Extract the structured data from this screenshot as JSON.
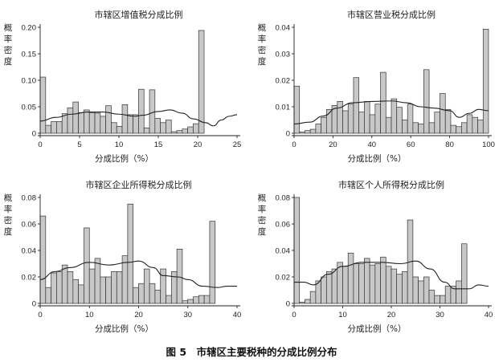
{
  "caption": "图 5　市辖区主要税种的分成比例分布",
  "chart_data": [
    {
      "type": "bar",
      "title": "市辖区增值税分成比例",
      "xlabel": "分成比例（%）",
      "ylabel": "概率密度",
      "xlim": [
        0,
        25
      ],
      "ylim": [
        0,
        0.2
      ],
      "xticks": [
        0,
        5,
        10,
        15,
        20,
        25
      ],
      "yticks": [
        0,
        0.05,
        0.1,
        0.15,
        0.2
      ],
      "ytick_labels": [
        "0",
        "0.05",
        "0.10",
        "0.15",
        "0.20"
      ],
      "bin_width": 0.694,
      "values": [
        0.106,
        0.015,
        0.022,
        0.022,
        0.037,
        0.048,
        0.059,
        0.039,
        0.044,
        0.039,
        0.038,
        0.032,
        0.052,
        0.02,
        0.013,
        0.054,
        0.035,
        0.035,
        0.083,
        0.01,
        0.082,
        0.028,
        0.02,
        0.025,
        0.003,
        0.005,
        0.008,
        0.012,
        0.018,
        0.194
      ],
      "density_curve": [
        [
          0,
          0.023
        ],
        [
          2,
          0.03
        ],
        [
          4,
          0.036
        ],
        [
          6,
          0.04
        ],
        [
          8,
          0.04
        ],
        [
          10,
          0.036
        ],
        [
          12,
          0.032
        ],
        [
          13,
          0.034
        ],
        [
          15,
          0.041
        ],
        [
          16.5,
          0.044
        ],
        [
          18,
          0.038
        ],
        [
          19.5,
          0.027
        ],
        [
          21,
          0.02
        ],
        [
          22,
          0.014
        ],
        [
          23,
          0.025
        ],
        [
          24,
          0.032
        ],
        [
          25,
          0.035
        ]
      ]
    },
    {
      "type": "bar",
      "title": "市辖区营业税分成比例",
      "xlabel": "分成比例（%）",
      "ylabel": "概率密度",
      "xlim": [
        0,
        100
      ],
      "ylim": [
        0,
        0.04
      ],
      "xticks": [
        0,
        20,
        40,
        60,
        80,
        100
      ],
      "yticks": [
        0,
        0.01,
        0.02,
        0.03,
        0.04
      ],
      "ytick_labels": [
        "0",
        "0.01",
        "0.02",
        "0.03",
        "0.04"
      ],
      "bin_width": 2.778,
      "values": [
        0.0178,
        0.0005,
        0.001,
        0.0015,
        0.0035,
        0.006,
        0.009,
        0.0105,
        0.012,
        0.0085,
        0.011,
        0.021,
        0.008,
        0.012,
        0.007,
        0.011,
        0.023,
        0.006,
        0.013,
        0.0098,
        0.005,
        0.011,
        0.004,
        0.0035,
        0.024,
        0.004,
        0.008,
        0.015,
        0.009,
        0.003,
        0.0025,
        0.004,
        0.007,
        0.006,
        0.005,
        0.0393
      ],
      "density_curve": [
        [
          0,
          0.0035
        ],
        [
          8,
          0.0042
        ],
        [
          15,
          0.0065
        ],
        [
          22,
          0.0095
        ],
        [
          30,
          0.0115
        ],
        [
          40,
          0.012
        ],
        [
          50,
          0.0122
        ],
        [
          58,
          0.0115
        ],
        [
          65,
          0.01
        ],
        [
          72,
          0.0095
        ],
        [
          80,
          0.0085
        ],
        [
          85,
          0.006
        ],
        [
          90,
          0.0075
        ],
        [
          95,
          0.009
        ],
        [
          100,
          0.0085
        ]
      ]
    },
    {
      "type": "bar",
      "title": "市辖区企业所得税分成比例",
      "xlabel": "分成比例（%）",
      "ylabel": "概率密度",
      "xlim": [
        0,
        40
      ],
      "ylim": [
        0,
        0.08
      ],
      "xticks": [
        0,
        10,
        20,
        30,
        40
      ],
      "yticks": [
        0,
        0.02,
        0.04,
        0.06,
        0.08
      ],
      "ytick_labels": [
        "0",
        "0.02",
        "0.04",
        "0.06",
        "0.08"
      ],
      "bin_width": 1.111,
      "values": [
        0.066,
        0.012,
        0.023,
        0.024,
        0.029,
        0.024,
        0.018,
        0.014,
        0.057,
        0.026,
        0.034,
        0.02,
        0.02,
        0.024,
        0.024,
        0.036,
        0.075,
        0.012,
        0.015,
        0.026,
        0.015,
        0.01,
        0.026,
        0.006,
        0.024,
        0.041,
        0.002,
        0.003,
        0.005,
        0.006,
        0.006,
        0.062
      ],
      "density_curve": [
        [
          0,
          0.018
        ],
        [
          3,
          0.024
        ],
        [
          6,
          0.027
        ],
        [
          10,
          0.031
        ],
        [
          14,
          0.029
        ],
        [
          18,
          0.031
        ],
        [
          20,
          0.032
        ],
        [
          23,
          0.027
        ],
        [
          25,
          0.021
        ],
        [
          28,
          0.02
        ],
        [
          30,
          0.018
        ],
        [
          33,
          0.013
        ],
        [
          36,
          0.012
        ],
        [
          38,
          0.013
        ],
        [
          40,
          0.013
        ]
      ]
    },
    {
      "type": "bar",
      "title": "市辖区个人所得税分成比例",
      "xlabel": "分成比例（%）",
      "ylabel": "概率密度",
      "xlim": [
        0,
        40
      ],
      "ylim": [
        0,
        0.08
      ],
      "xticks": [
        0,
        10,
        20,
        30,
        40
      ],
      "yticks": [
        0,
        0.02,
        0.04,
        0.06,
        0.08
      ],
      "ytick_labels": [
        "0",
        "0.02",
        "0.04",
        "0.06",
        "0.08"
      ],
      "bin_width": 1.111,
      "values": [
        0.08,
        0.001,
        0.003,
        0.009,
        0.017,
        0.02,
        0.024,
        0.026,
        0.031,
        0.028,
        0.038,
        0.03,
        0.03,
        0.034,
        0.029,
        0.03,
        0.035,
        0.028,
        0.026,
        0.022,
        0.024,
        0.063,
        0.02,
        0.017,
        0.02,
        0.01,
        0.006,
        0.006,
        0.013,
        0.013,
        0.017,
        0.045
      ],
      "density_curve": [
        [
          0,
          0.016
        ],
        [
          2,
          0.016
        ],
        [
          4,
          0.014
        ],
        [
          7,
          0.022
        ],
        [
          10,
          0.028
        ],
        [
          14,
          0.031
        ],
        [
          18,
          0.031
        ],
        [
          22,
          0.03
        ],
        [
          25,
          0.032
        ],
        [
          28,
          0.026
        ],
        [
          31,
          0.016
        ],
        [
          33,
          0.011
        ],
        [
          36,
          0.011
        ],
        [
          38,
          0.014
        ],
        [
          40,
          0.013
        ]
      ]
    }
  ]
}
